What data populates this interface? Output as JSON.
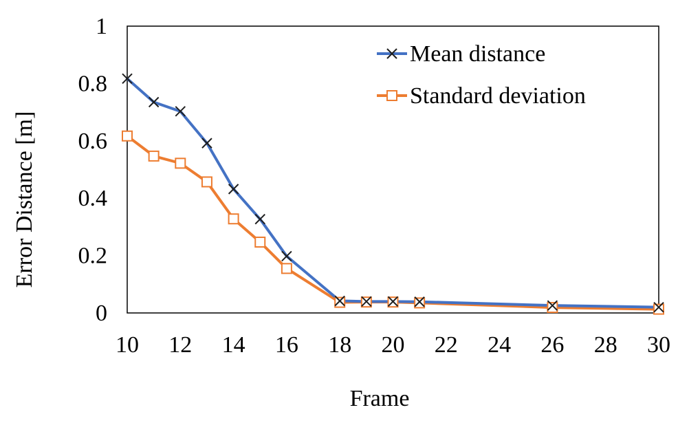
{
  "chart_data": {
    "type": "line",
    "title": "",
    "xlabel": "Frame",
    "ylabel": "Error Distance [m]",
    "xlim": [
      10,
      30
    ],
    "ylim": [
      0,
      1
    ],
    "xticks": [
      10,
      12,
      14,
      16,
      18,
      20,
      22,
      24,
      26,
      28,
      30
    ],
    "xtick_labels": [
      "10",
      "12",
      "14",
      "16",
      "18",
      "20",
      "22",
      "24",
      "26",
      "28",
      "30"
    ],
    "yticks": [
      0,
      0.2,
      0.4,
      0.6,
      0.8,
      1
    ],
    "ytick_labels": [
      "0",
      "0.2",
      "0.4",
      "0.6",
      "0.8",
      "1"
    ],
    "grid": false,
    "legend_position": "top-right",
    "series": [
      {
        "name": "Mean distance",
        "color": "#4472C4",
        "marker": "x",
        "x": [
          10,
          11,
          12,
          13,
          14,
          15,
          16,
          18,
          19,
          20,
          21,
          26,
          30
        ],
        "y": [
          0.817,
          0.735,
          0.703,
          0.592,
          0.432,
          0.327,
          0.198,
          0.042,
          0.04,
          0.04,
          0.039,
          0.026,
          0.02
        ]
      },
      {
        "name": "Standard deviation",
        "color": "#ED7D31",
        "marker": "square",
        "x": [
          10,
          11,
          12,
          13,
          14,
          15,
          16,
          18,
          19,
          20,
          21,
          26,
          30
        ],
        "y": [
          0.617,
          0.547,
          0.522,
          0.457,
          0.328,
          0.247,
          0.155,
          0.037,
          0.038,
          0.038,
          0.035,
          0.019,
          0.013
        ]
      }
    ]
  }
}
